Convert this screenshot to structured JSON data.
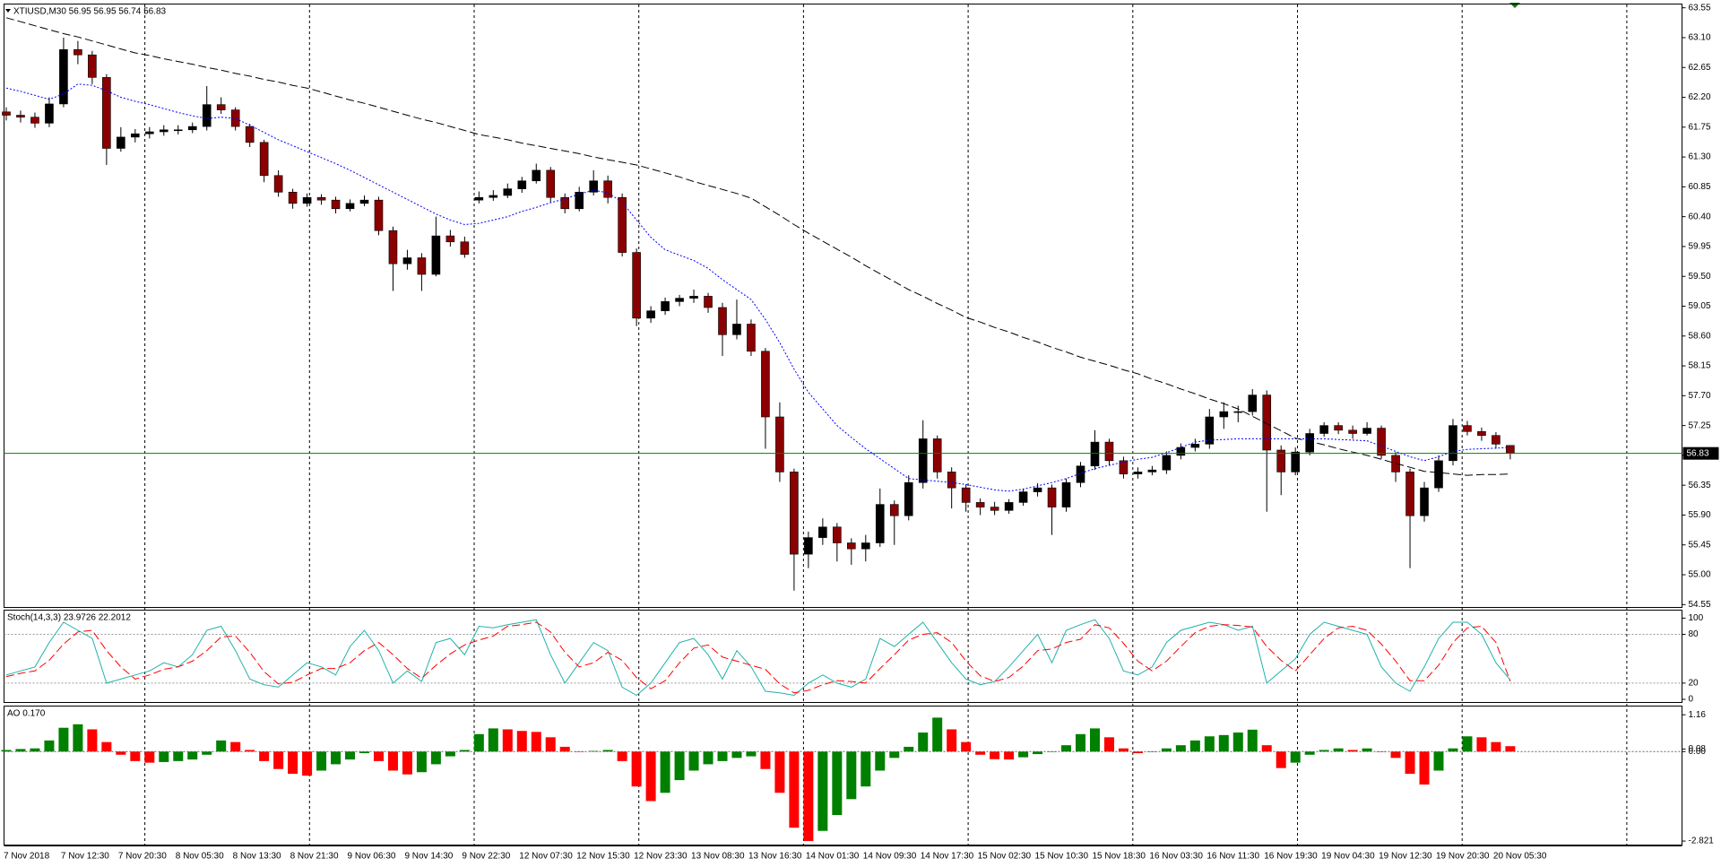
{
  "chart_data": [
    {
      "type": "candlestick",
      "title": "XTIUSD,M30  56.95 56.95 56.74 56.83",
      "categories": [
        "7 Nov 2018",
        null,
        null,
        null,
        "7 Nov 12:30",
        null,
        null,
        null,
        "7 Nov 20:30",
        null,
        null,
        null,
        "8 Nov 05:30",
        null,
        null,
        null,
        "8 Nov 13:30",
        null,
        null,
        null,
        "8 Nov 21:30",
        null,
        null,
        null,
        "9 Nov 06:30",
        null,
        null,
        null,
        "9 Nov 14:30",
        null,
        null,
        null,
        "9 Nov 22:30",
        null,
        null,
        null,
        "12 Nov 07:30",
        null,
        null,
        null,
        "12 Nov 15:30",
        null,
        null,
        null,
        "12 Nov 23:30",
        null,
        null,
        null,
        "13 Nov 08:30",
        null,
        null,
        null,
        "13 Nov 16:30",
        null,
        null,
        null,
        "14 Nov 01:30",
        null,
        null,
        null,
        "14 Nov 09:30",
        null,
        null,
        null,
        "14 Nov 17:30",
        null,
        null,
        null,
        "15 Nov 02:30",
        null,
        null,
        null,
        "15 Nov 10:30",
        null,
        null,
        null,
        "15 Nov 18:30",
        null,
        null,
        null,
        "16 Nov 03:30",
        null,
        null,
        null,
        "16 Nov 11:30",
        null,
        null,
        null,
        "16 Nov 19:30",
        null,
        null,
        null,
        "19 Nov 04:30",
        null,
        null,
        null,
        "19 Nov 12:30",
        null,
        null,
        null,
        "19 Nov 20:30",
        null,
        null,
        null,
        "20 Nov 05:30",
        null
      ],
      "open": [
        61.98,
        61.93,
        61.9,
        61.81,
        62.1,
        62.92,
        62.84,
        62.5,
        61.43,
        61.6,
        61.65,
        61.68,
        61.71,
        61.71,
        61.76,
        62.09,
        62.01,
        61.76,
        61.52,
        61.02,
        60.77,
        60.6,
        60.69,
        60.65,
        60.52,
        60.6,
        60.65,
        60.19,
        59.69,
        59.78,
        59.53,
        60.11,
        60.02,
        60.65,
        60.69,
        60.72,
        60.82,
        60.94,
        61.1,
        60.69,
        60.52,
        60.77,
        60.94,
        60.69,
        59.86,
        58.87,
        58.98,
        59.12,
        59.17,
        59.2,
        59.03,
        58.62,
        58.78,
        58.37,
        57.38,
        56.55,
        55.31,
        55.56,
        55.72,
        55.48,
        55.39,
        55.48,
        56.06,
        55.89,
        56.39,
        57.05,
        56.55,
        56.31,
        56.09,
        56.02,
        55.97,
        56.09,
        56.25,
        56.31,
        56.02,
        56.39,
        56.64,
        57.0,
        56.72,
        56.52,
        56.55,
        56.58,
        56.8,
        56.92,
        56.97,
        57.38,
        57.46,
        57.46,
        57.71,
        56.88,
        56.55,
        56.85,
        57.13,
        57.25,
        57.18,
        57.13,
        57.21,
        56.8,
        56.55,
        55.89,
        56.31,
        56.72,
        57.25,
        57.16,
        57.1,
        56.95
      ],
      "high": [
        62.05,
        62.0,
        61.97,
        62.2,
        63.1,
        63.05,
        62.9,
        62.55,
        61.75,
        61.72,
        61.75,
        61.78,
        61.78,
        61.82,
        62.37,
        62.2,
        62.05,
        61.8,
        61.56,
        61.1,
        60.82,
        60.75,
        60.74,
        60.7,
        60.66,
        60.72,
        60.7,
        60.25,
        59.9,
        59.85,
        60.4,
        60.2,
        60.1,
        60.78,
        60.8,
        60.9,
        61.0,
        61.2,
        61.15,
        60.75,
        60.85,
        61.1,
        61.02,
        60.75,
        59.92,
        59.05,
        59.18,
        59.22,
        59.3,
        59.25,
        59.1,
        59.15,
        58.85,
        58.42,
        57.6,
        56.6,
        55.65,
        55.85,
        55.78,
        55.55,
        55.6,
        56.3,
        56.12,
        56.5,
        57.33,
        57.1,
        56.62,
        56.36,
        56.15,
        56.1,
        56.14,
        56.3,
        56.38,
        56.36,
        56.45,
        56.7,
        57.18,
        57.05,
        56.78,
        56.62,
        56.64,
        56.86,
        56.98,
        57.05,
        57.5,
        57.6,
        57.55,
        57.8,
        57.78,
        56.95,
        56.92,
        57.2,
        57.3,
        57.3,
        57.25,
        57.3,
        57.25,
        56.85,
        56.6,
        56.4,
        56.8,
        57.35,
        57.32,
        57.22,
        57.15,
        56.95
      ],
      "low": [
        61.85,
        61.82,
        61.74,
        61.75,
        62.05,
        62.7,
        62.4,
        61.18,
        61.38,
        61.52,
        61.58,
        61.62,
        61.64,
        61.66,
        61.7,
        61.95,
        61.7,
        61.45,
        60.92,
        60.7,
        60.52,
        60.55,
        60.58,
        60.45,
        60.48,
        60.56,
        60.12,
        59.28,
        59.6,
        59.28,
        59.5,
        59.95,
        59.78,
        60.6,
        60.64,
        60.68,
        60.76,
        60.9,
        60.62,
        60.45,
        60.48,
        60.72,
        60.6,
        59.8,
        58.75,
        58.8,
        58.92,
        59.05,
        59.1,
        58.95,
        58.3,
        58.55,
        58.3,
        56.9,
        56.4,
        54.76,
        55.1,
        55.45,
        55.2,
        55.15,
        55.2,
        55.42,
        55.45,
        55.82,
        56.3,
        56.45,
        56.0,
        55.95,
        55.9,
        55.9,
        55.92,
        56.04,
        56.18,
        55.6,
        55.95,
        56.32,
        56.58,
        56.65,
        56.45,
        56.45,
        56.5,
        56.52,
        56.74,
        56.86,
        56.9,
        57.2,
        57.3,
        57.4,
        55.95,
        56.2,
        56.5,
        56.8,
        57.08,
        57.12,
        57.05,
        57.1,
        56.75,
        56.4,
        55.1,
        55.8,
        56.25,
        56.65,
        57.1,
        57.02,
        56.9,
        56.74
      ],
      "close": [
        61.93,
        61.9,
        61.81,
        62.1,
        62.92,
        62.84,
        62.5,
        61.43,
        61.6,
        61.65,
        61.68,
        61.71,
        61.71,
        61.76,
        62.09,
        62.01,
        61.76,
        61.52,
        61.02,
        60.77,
        60.6,
        60.69,
        60.65,
        60.52,
        60.6,
        60.65,
        60.19,
        59.69,
        59.78,
        59.53,
        60.11,
        60.02,
        59.83,
        60.69,
        60.72,
        60.82,
        60.94,
        61.1,
        60.69,
        60.52,
        60.77,
        60.94,
        60.69,
        59.86,
        58.87,
        58.98,
        59.12,
        59.17,
        59.2,
        59.03,
        58.62,
        58.78,
        58.37,
        57.38,
        56.55,
        55.31,
        55.56,
        55.72,
        55.48,
        55.39,
        55.48,
        56.06,
        55.89,
        56.39,
        57.05,
        56.55,
        56.31,
        56.09,
        56.02,
        55.97,
        56.09,
        56.25,
        56.31,
        56.02,
        56.39,
        56.64,
        57.0,
        56.72,
        56.52,
        56.55,
        56.58,
        56.8,
        56.92,
        56.97,
        57.38,
        57.46,
        57.46,
        57.71,
        56.88,
        56.55,
        56.85,
        57.13,
        57.25,
        57.18,
        57.13,
        57.21,
        56.8,
        56.55,
        55.89,
        56.31,
        56.72,
        57.25,
        57.16,
        57.1,
        56.97,
        56.83
      ],
      "up_color": "#000000",
      "down_color": "#8b0000",
      "series": [
        {
          "color": "#0000ff",
          "style": "dotted",
          "values": [
            62.34,
            62.29,
            62.23,
            62.17,
            62.25,
            62.4,
            62.38,
            62.3,
            62.2,
            62.14,
            62.09,
            62.03,
            61.97,
            61.92,
            61.88,
            61.9,
            61.88,
            61.78,
            61.67,
            61.56,
            61.47,
            61.38,
            61.29,
            61.2,
            61.1,
            60.99,
            60.88,
            60.77,
            60.66,
            60.55,
            60.44,
            60.35,
            60.28,
            60.3,
            60.35,
            60.4,
            60.48,
            60.54,
            60.61,
            60.67,
            60.74,
            60.8,
            60.76,
            60.62,
            60.35,
            60.09,
            59.9,
            59.82,
            59.74,
            59.62,
            59.45,
            59.3,
            59.15,
            58.85,
            58.5,
            58.1,
            57.75,
            57.5,
            57.25,
            57.07,
            56.9,
            56.75,
            56.6,
            56.45,
            56.43,
            56.41,
            56.39,
            56.36,
            56.32,
            56.28,
            56.26,
            56.29,
            56.34,
            56.39,
            56.45,
            56.53,
            56.6,
            56.65,
            56.7,
            56.74,
            56.77,
            56.84,
            56.92,
            57.0,
            57.03,
            57.04,
            57.05,
            57.05,
            57.05,
            57.05,
            57.05,
            57.05,
            57.05,
            57.04,
            57.03,
            57.02,
            56.94,
            56.86,
            56.78,
            56.72,
            56.78,
            56.86,
            56.89,
            56.9,
            56.91,
            56.92
          ]
        },
        {
          "color": "#000000",
          "style": "dashed",
          "values": [
            63.4,
            63.34,
            63.28,
            63.22,
            63.16,
            63.11,
            63.05,
            62.99,
            62.93,
            62.87,
            62.83,
            62.78,
            62.74,
            62.7,
            62.65,
            62.61,
            62.56,
            62.52,
            62.47,
            62.43,
            62.38,
            62.34,
            62.28,
            62.22,
            62.16,
            62.11,
            62.05,
            61.99,
            61.93,
            61.87,
            61.82,
            61.76,
            61.7,
            61.64,
            61.6,
            61.56,
            61.51,
            61.47,
            61.43,
            61.39,
            61.35,
            61.3,
            61.26,
            61.22,
            61.18,
            61.12,
            61.06,
            61.0,
            60.93,
            60.87,
            60.81,
            60.75,
            60.68,
            60.55,
            60.42,
            60.28,
            60.15,
            60.03,
            59.91,
            59.79,
            59.66,
            59.54,
            59.42,
            59.3,
            59.2,
            59.09,
            58.99,
            58.88,
            58.81,
            58.73,
            58.66,
            58.58,
            58.51,
            58.43,
            58.36,
            58.28,
            58.22,
            58.16,
            58.09,
            58.03,
            57.95,
            57.88,
            57.8,
            57.73,
            57.65,
            57.58,
            57.5,
            57.39,
            57.28,
            57.17,
            57.06,
            57.01,
            56.96,
            56.9,
            56.85,
            56.8,
            56.74,
            56.68,
            56.62,
            56.56,
            56.54,
            56.52,
            56.5,
            56.51,
            56.51,
            56.52
          ]
        }
      ],
      "price_line": {
        "value": 56.83,
        "color": "#008000"
      },
      "ylim": [
        54.5,
        63.6
      ],
      "yticks": [
        54.55,
        {
          "value": 55.0,
          "label": "55.00"
        },
        55.45,
        {
          "value": 55.9,
          "label": "55.90"
        },
        56.35,
        {
          "value": 56.8,
          "label": "56.80"
        },
        57.25,
        {
          "value": 57.7,
          "label": "57.70"
        },
        58.15,
        {
          "value": 58.6,
          "label": "58.60"
        },
        59.05,
        {
          "value": 59.5,
          "label": "59.50"
        },
        59.95,
        {
          "value": 60.4,
          "label": "60.40"
        },
        60.85,
        {
          "value": 61.3,
          "label": "61.30"
        },
        61.75,
        {
          "value": 62.2,
          "label": "62.20"
        },
        62.65,
        {
          "value": 63.1,
          "label": "63.10"
        },
        63.55
      ]
    },
    {
      "type": "line",
      "title": "Stoch(14,3,3) 23.9726 22.2012",
      "series": [
        {
          "color": "#20b2aa",
          "style": "solid",
          "values": [
            30,
            35,
            40,
            70,
            95,
            85,
            75,
            20,
            25,
            30,
            35,
            45,
            40,
            55,
            85,
            90,
            60,
            25,
            18,
            15,
            30,
            45,
            40,
            30,
            65,
            85,
            60,
            20,
            35,
            22,
            70,
            75,
            55,
            90,
            88,
            92,
            95,
            98,
            55,
            20,
            45,
            70,
            60,
            15,
            5,
            20,
            45,
            70,
            75,
            55,
            25,
            60,
            40,
            10,
            8,
            5,
            20,
            30,
            20,
            15,
            25,
            75,
            65,
            80,
            95,
            70,
            45,
            25,
            18,
            22,
            40,
            60,
            80,
            45,
            85,
            92,
            98,
            75,
            35,
            30,
            40,
            70,
            85,
            90,
            95,
            92,
            85,
            90,
            20,
            35,
            50,
            80,
            95,
            90,
            85,
            80,
            40,
            20,
            10,
            40,
            75,
            95,
            95,
            80,
            45,
            23.9726
          ]
        },
        {
          "color": "#ff0000",
          "style": "dashed",
          "values": [
            28,
            32,
            35,
            48,
            68,
            83,
            85,
            60,
            40,
            25,
            30,
            37,
            40,
            47,
            60,
            77,
            78,
            58,
            34,
            19,
            21,
            30,
            38,
            38,
            45,
            60,
            70,
            55,
            38,
            26,
            42,
            56,
            67,
            73,
            78,
            90,
            92,
            95,
            83,
            58,
            40,
            45,
            58,
            48,
            27,
            13,
            23,
            45,
            63,
            67,
            52,
            47,
            42,
            37,
            19,
            8,
            11,
            18,
            23,
            22,
            20,
            38,
            55,
            73,
            80,
            82,
            70,
            47,
            29,
            22,
            27,
            41,
            60,
            62,
            70,
            74,
            92,
            88,
            69,
            47,
            35,
            47,
            65,
            82,
            90,
            92,
            91,
            89,
            65,
            48,
            35,
            55,
            75,
            88,
            90,
            85,
            68,
            47,
            23,
            23,
            42,
            70,
            88,
            90,
            70,
            22.2012
          ]
        }
      ],
      "levels": [
        20,
        80
      ],
      "ylim": [
        -4.4,
        109.3
      ],
      "yticks": [
        0,
        20,
        80,
        100
      ]
    },
    {
      "type": "ao",
      "title": "AO 0.170",
      "values": [
        0.05,
        0.08,
        0.1,
        0.35,
        0.75,
        0.86,
        0.7,
        0.3,
        -0.1,
        -0.3,
        -0.35,
        -0.33,
        -0.3,
        -0.25,
        -0.1,
        0.35,
        0.3,
        0.05,
        -0.3,
        -0.55,
        -0.7,
        -0.76,
        -0.6,
        -0.4,
        -0.25,
        -0.05,
        -0.3,
        -0.6,
        -0.72,
        -0.65,
        -0.4,
        -0.15,
        0.05,
        0.55,
        0.73,
        0.7,
        0.65,
        0.62,
        0.45,
        0.15,
        0.0,
        0.02,
        0.05,
        -0.3,
        -1.1,
        -1.56,
        -1.3,
        -0.9,
        -0.6,
        -0.4,
        -0.3,
        -0.2,
        -0.15,
        -0.55,
        -1.3,
        -2.4,
        -2.82,
        -2.5,
        -2.0,
        -1.5,
        -1.1,
        -0.6,
        -0.2,
        0.15,
        0.6,
        1.07,
        0.7,
        0.3,
        -0.1,
        -0.24,
        -0.25,
        -0.18,
        -0.08,
        0.0,
        0.2,
        0.55,
        0.73,
        0.45,
        0.1,
        -0.05,
        0.0,
        0.1,
        0.2,
        0.35,
        0.48,
        0.52,
        0.6,
        0.69,
        0.2,
        -0.52,
        -0.35,
        -0.1,
        0.05,
        0.1,
        0.05,
        0.1,
        0.0,
        -0.2,
        -0.7,
        -1.04,
        -0.6,
        0.1,
        0.48,
        0.45,
        0.3,
        0.17
      ],
      "up_color": "#008000",
      "down_color": "#ff0000",
      "levels": [
        0
      ],
      "ylim": [
        -2.96,
        1.42
      ],
      "yticks": [
        -2.821,
        {
          "value": 0,
          "label": "0.00"
        },
        0.08,
        1.16
      ]
    }
  ]
}
